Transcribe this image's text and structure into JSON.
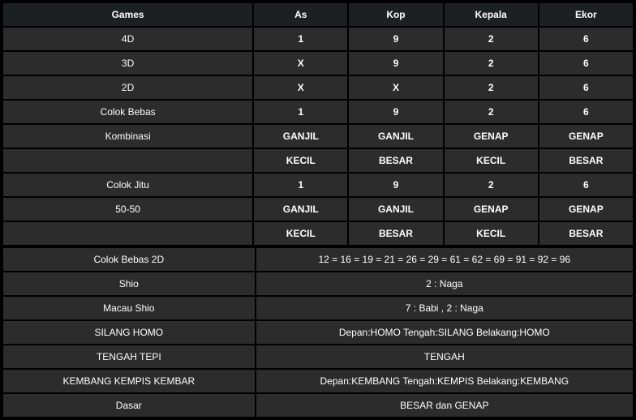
{
  "headers": {
    "games": "Games",
    "as": "As",
    "kop": "Kop",
    "kepala": "Kepala",
    "ekor": "Ekor"
  },
  "rows4": [
    {
      "label": "4D",
      "as": "1",
      "kop": "9",
      "kepala": "2",
      "ekor": "6"
    },
    {
      "label": "3D",
      "as": "X",
      "kop": "9",
      "kepala": "2",
      "ekor": "6"
    },
    {
      "label": "2D",
      "as": "X",
      "kop": "X",
      "kepala": "2",
      "ekor": "6"
    },
    {
      "label": "Colok Bebas",
      "as": "1",
      "kop": "9",
      "kepala": "2",
      "ekor": "6"
    },
    {
      "label": "Kombinasi",
      "as": "GANJIL",
      "kop": "GANJIL",
      "kepala": "GENAP",
      "ekor": "GENAP"
    },
    {
      "label": "",
      "as": "KECIL",
      "kop": "BESAR",
      "kepala": "KECIL",
      "ekor": "BESAR"
    },
    {
      "label": "Colok Jitu",
      "as": "1",
      "kop": "9",
      "kepala": "2",
      "ekor": "6"
    },
    {
      "label": "50-50",
      "as": "GANJIL",
      "kop": "GANJIL",
      "kepala": "GENAP",
      "ekor": "GENAP"
    },
    {
      "label": "",
      "as": "KECIL",
      "kop": "BESAR",
      "kepala": "KECIL",
      "ekor": "BESAR"
    }
  ],
  "rowsSpan": [
    {
      "label": "Colok Bebas 2D",
      "value": "12 = 16 = 19 = 21 = 26 = 29 = 61 = 62 = 69 = 91 = 92 = 96"
    },
    {
      "label": "Shio",
      "value": "2 : Naga"
    },
    {
      "label": "Macau Shio",
      "value": "7 : Babi , 2 : Naga"
    },
    {
      "label": "SILANG HOMO",
      "value": "Depan:HOMO Tengah:SILANG Belakang:HOMO"
    },
    {
      "label": "TENGAH TEPI",
      "value": "TENGAH"
    },
    {
      "label": "KEMBANG KEMPIS KEMBAR",
      "value": "Depan:KEMBANG Tengah:KEMPIS Belakang:KEMBANG"
    },
    {
      "label": "Dasar",
      "value": "BESAR dan GENAP"
    }
  ]
}
